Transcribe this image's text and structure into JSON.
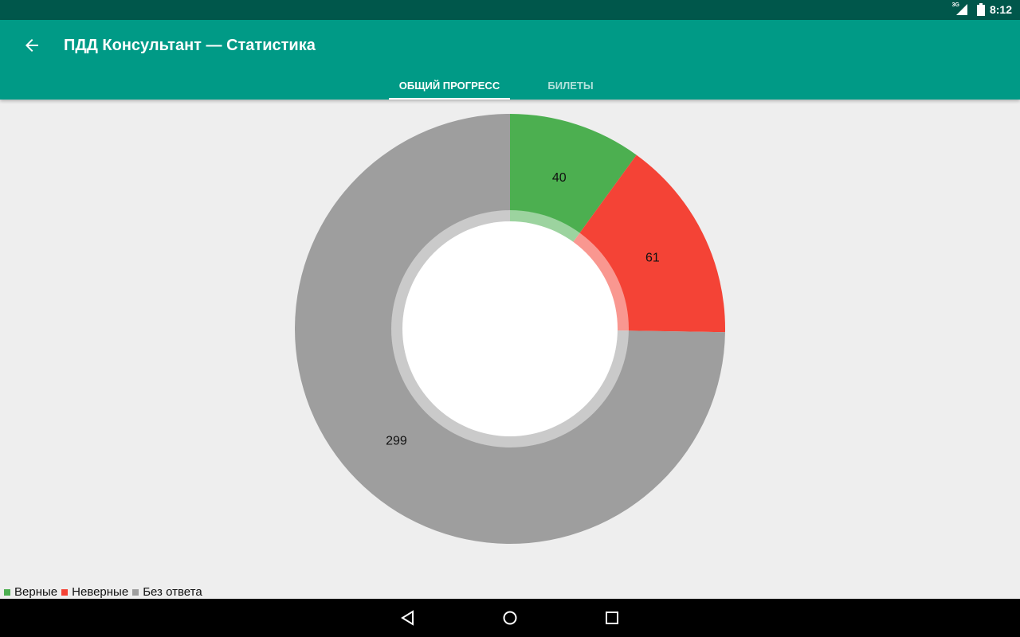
{
  "status_bar": {
    "network": "3G",
    "time": "8:12"
  },
  "app_bar": {
    "title": "ПДД Консультант — Статистика",
    "back_icon": "arrow-back-icon"
  },
  "tabs": [
    {
      "label": "ОБЩИЙ ПРОГРЕСС",
      "active": true
    },
    {
      "label": "БИЛЕТЫ",
      "active": false
    }
  ],
  "chart_data": {
    "type": "pie",
    "variant": "donut",
    "categories": [
      "Верные",
      "Неверные",
      "Без ответа"
    ],
    "values": [
      40,
      61,
      299
    ],
    "colors": [
      "#4caf50",
      "#f44336",
      "#9e9e9e"
    ],
    "data_labels": [
      "40",
      "61",
      "299"
    ],
    "legend": {
      "placement": "bottom-left",
      "entries": [
        "Верные",
        "Неверные",
        "Без ответа"
      ]
    }
  },
  "nav_bar": {
    "icons": [
      "back-triangle-icon",
      "home-circle-icon",
      "recents-square-icon"
    ]
  }
}
